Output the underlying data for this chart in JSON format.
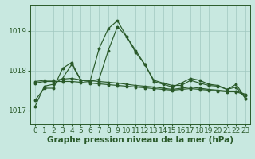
{
  "background_color": "#c8e8e0",
  "grid_color": "#a0c8c0",
  "line_color": "#2a5a2a",
  "xlabel": "Graphe pression niveau de la mer (hPa)",
  "xlabel_fontsize": 7.5,
  "tick_fontsize": 6.5,
  "yticks": [
    1017,
    1018,
    1019
  ],
  "ylim": [
    1016.65,
    1019.65
  ],
  "xlim": [
    -0.5,
    23.5
  ],
  "xticks": [
    0,
    1,
    2,
    3,
    4,
    5,
    6,
    7,
    8,
    9,
    10,
    11,
    12,
    13,
    14,
    15,
    16,
    17,
    18,
    19,
    20,
    21,
    22,
    23
  ],
  "s1": [
    1017.1,
    1017.6,
    1017.65,
    1017.8,
    1018.15,
    1017.75,
    1017.72,
    1018.55,
    1019.05,
    1019.25,
    1018.85,
    1018.45,
    1018.15,
    1017.75,
    1017.68,
    1017.62,
    1017.62,
    1017.75,
    1017.68,
    1017.62,
    1017.6,
    1017.52,
    1017.65,
    1017.3
  ],
  "s2": [
    1017.25,
    1017.55,
    1017.55,
    1018.05,
    1018.2,
    1017.75,
    1017.72,
    1017.78,
    1018.5,
    1019.1,
    1018.85,
    1018.5,
    1018.15,
    1017.72,
    1017.65,
    1017.58,
    1017.68,
    1017.8,
    1017.75,
    1017.65,
    1017.62,
    1017.52,
    1017.58,
    1017.3
  ],
  "s3": [
    1017.68,
    1017.72,
    1017.72,
    1017.72,
    1017.72,
    1017.7,
    1017.68,
    1017.66,
    1017.64,
    1017.62,
    1017.6,
    1017.58,
    1017.56,
    1017.54,
    1017.52,
    1017.5,
    1017.52,
    1017.54,
    1017.52,
    1017.5,
    1017.48,
    1017.46,
    1017.46,
    1017.38
  ],
  "s4": [
    1017.72,
    1017.75,
    1017.75,
    1017.78,
    1017.8,
    1017.76,
    1017.74,
    1017.72,
    1017.7,
    1017.68,
    1017.65,
    1017.62,
    1017.6,
    1017.58,
    1017.55,
    1017.52,
    1017.55,
    1017.58,
    1017.55,
    1017.52,
    1017.5,
    1017.48,
    1017.48,
    1017.4
  ]
}
